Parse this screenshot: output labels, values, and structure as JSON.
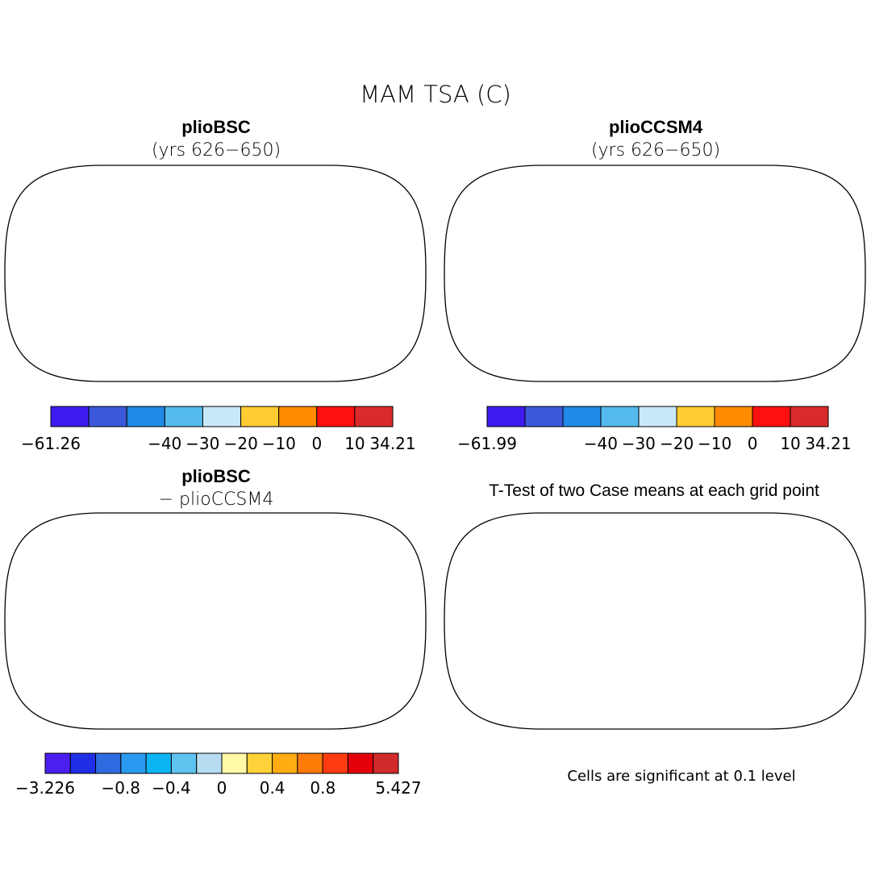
{
  "figure": {
    "title": "MAM TSA (C)",
    "note": "Cells are significant at 0.1 level"
  },
  "panels": [
    {
      "id": "pliobsc",
      "title": "plioBSC",
      "subtitle": "(yrs 626−650)",
      "palette": [
        "#3f1bf0",
        "#3b58db",
        "#1f8ae8",
        "#55bbee",
        "#c9e8f7",
        "#ffcc33",
        "#ff8c00",
        "#ff1010",
        "#d92b2b"
      ],
      "colorbar_labels": [
        "−61.26",
        "−40",
        "−30",
        "−20",
        "−10",
        "0",
        "10",
        "34.21"
      ],
      "range": [
        -61.26,
        34.21
      ]
    },
    {
      "id": "pliocsm4",
      "title": "plioCCSM4",
      "subtitle": "(yrs 626−650)",
      "palette": [
        "#3f1bf0",
        "#3b58db",
        "#1f8ae8",
        "#55bbee",
        "#c9e8f7",
        "#ffcc33",
        "#ff8c00",
        "#ff1010",
        "#d92b2b"
      ],
      "colorbar_labels": [
        "−61.99",
        "−40",
        "−30",
        "−20",
        "−10",
        "0",
        "10",
        "34.21"
      ],
      "range": [
        -61.99,
        34.21
      ]
    },
    {
      "id": "diff",
      "title": "plioBSC",
      "subtitle": "− plioCCSM4",
      "palette": [
        "#4b1ff0",
        "#1f2fe6",
        "#2d6be0",
        "#2a9af0",
        "#0db4f2",
        "#5fc3ef",
        "#b6dcf0",
        "#fff9a8",
        "#ffd23a",
        "#ffad12",
        "#ff7b08",
        "#ff3b10",
        "#e3000a",
        "#d12a2a"
      ],
      "colorbar_labels": [
        "−3.226",
        "−0.8",
        "−0.4",
        "0",
        "0.4",
        "0.8",
        "5.427"
      ],
      "range": [
        -3.226,
        5.427
      ]
    },
    {
      "id": "ttest",
      "title": "T-Test of two Case means at each grid point",
      "significant_color": "#ff1010"
    }
  ]
}
